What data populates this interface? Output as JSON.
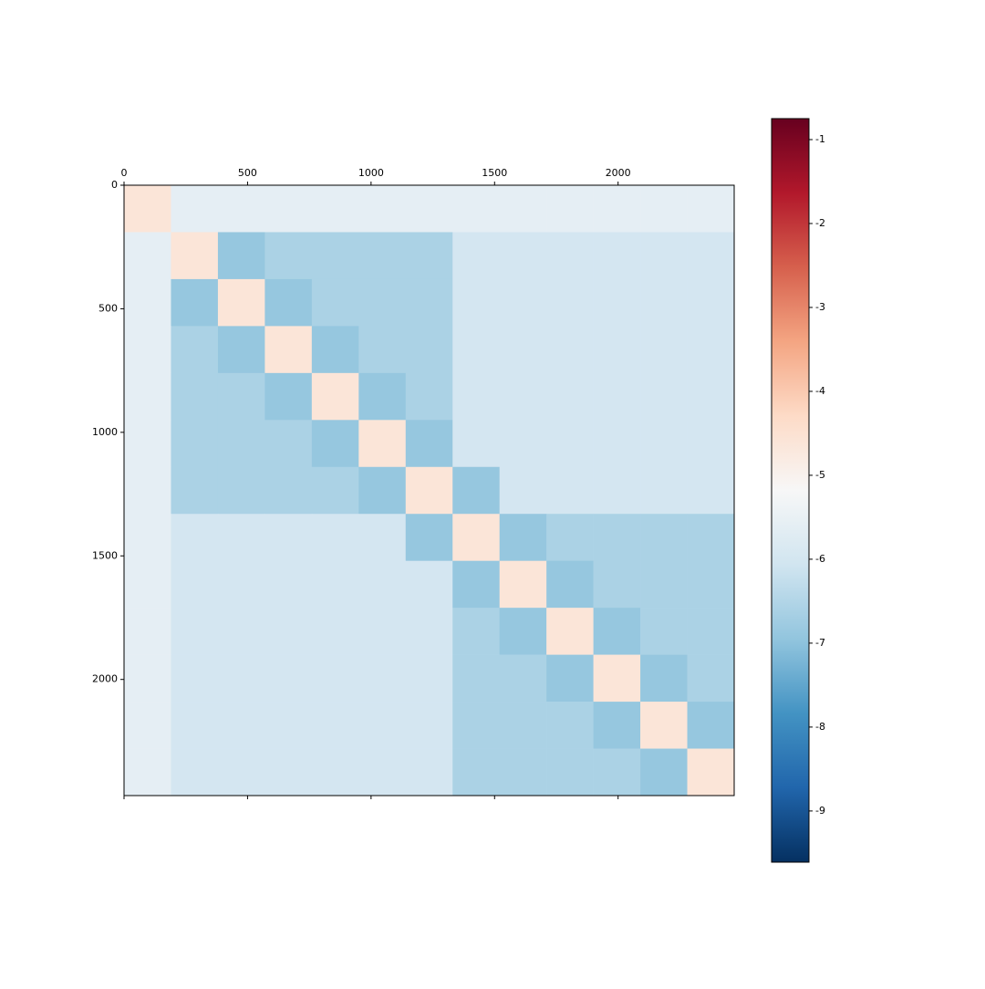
{
  "chart_data": {
    "type": "heatmap",
    "colormap": "RdBu_r",
    "xbins": [
      0,
      190,
      380,
      570,
      760,
      950,
      1140,
      1330,
      1520,
      1710,
      1900,
      2090,
      2280,
      2470
    ],
    "ybins": [
      0,
      190,
      380,
      570,
      760,
      950,
      1140,
      1330,
      1520,
      1710,
      1900,
      2090,
      2280,
      2470
    ],
    "values": [
      [
        -4.6,
        -5.6,
        -5.6,
        -5.6,
        -5.6,
        -5.6,
        -5.6,
        -5.6,
        -5.6,
        -5.6,
        -5.6,
        -5.6,
        -5.6
      ],
      [
        -5.6,
        -4.6,
        -6.9,
        -6.6,
        -6.6,
        -6.6,
        -6.6,
        -6.0,
        -6.0,
        -6.0,
        -6.0,
        -6.0,
        -6.0
      ],
      [
        -5.6,
        -6.9,
        -4.6,
        -6.9,
        -6.6,
        -6.6,
        -6.6,
        -6.0,
        -6.0,
        -6.0,
        -6.0,
        -6.0,
        -6.0
      ],
      [
        -5.6,
        -6.6,
        -6.9,
        -4.6,
        -6.9,
        -6.6,
        -6.6,
        -6.0,
        -6.0,
        -6.0,
        -6.0,
        -6.0,
        -6.0
      ],
      [
        -5.6,
        -6.6,
        -6.6,
        -6.9,
        -4.6,
        -6.9,
        -6.6,
        -6.0,
        -6.0,
        -6.0,
        -6.0,
        -6.0,
        -6.0
      ],
      [
        -5.6,
        -6.6,
        -6.6,
        -6.6,
        -6.9,
        -4.6,
        -6.9,
        -6.0,
        -6.0,
        -6.0,
        -6.0,
        -6.0,
        -6.0
      ],
      [
        -5.6,
        -6.6,
        -6.6,
        -6.6,
        -6.6,
        -6.9,
        -4.6,
        -6.9,
        -6.0,
        -6.0,
        -6.0,
        -6.0,
        -6.0
      ],
      [
        -5.6,
        -6.0,
        -6.0,
        -6.0,
        -6.0,
        -6.0,
        -6.9,
        -4.6,
        -6.9,
        -6.6,
        -6.6,
        -6.6,
        -6.6
      ],
      [
        -5.6,
        -6.0,
        -6.0,
        -6.0,
        -6.0,
        -6.0,
        -6.0,
        -6.9,
        -4.6,
        -6.9,
        -6.6,
        -6.6,
        -6.6
      ],
      [
        -5.6,
        -6.0,
        -6.0,
        -6.0,
        -6.0,
        -6.0,
        -6.0,
        -6.6,
        -6.9,
        -4.6,
        -6.9,
        -6.6,
        -6.6
      ],
      [
        -5.6,
        -6.0,
        -6.0,
        -6.0,
        -6.0,
        -6.0,
        -6.0,
        -6.6,
        -6.6,
        -6.9,
        -4.6,
        -6.9,
        -6.6
      ],
      [
        -5.6,
        -6.0,
        -6.0,
        -6.0,
        -6.0,
        -6.0,
        -6.0,
        -6.6,
        -6.6,
        -6.6,
        -6.9,
        -4.6,
        -6.9
      ],
      [
        -5.6,
        -6.0,
        -6.0,
        -6.0,
        -6.0,
        -6.0,
        -6.0,
        -6.6,
        -6.6,
        -6.6,
        -6.6,
        -6.9,
        -4.6
      ]
    ],
    "xlim": [
      0,
      2470
    ],
    "ylim": [
      2470,
      0
    ],
    "xticks": [
      0,
      500,
      1000,
      1500,
      2000
    ],
    "yticks": [
      0,
      500,
      1000,
      1500,
      2000
    ],
    "clim": [
      -9.61,
      -0.75
    ],
    "cticks": [
      -9,
      -8,
      -7,
      -6,
      -5,
      -4,
      -3,
      -2,
      -1
    ]
  }
}
